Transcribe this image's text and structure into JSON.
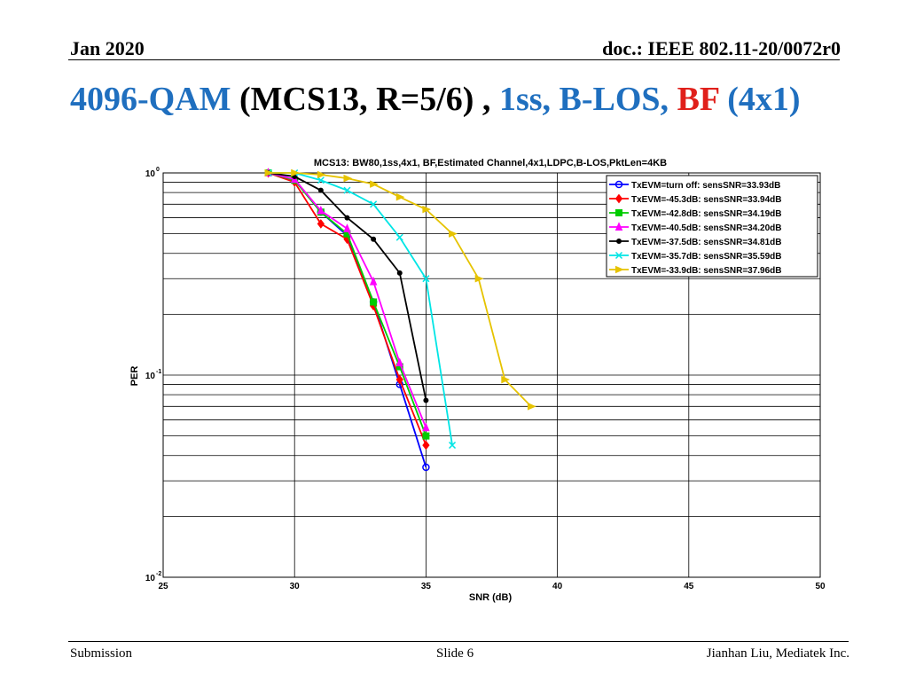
{
  "slide": {
    "date": "Jan 2020",
    "doc_id": "doc.: IEEE 802.11-20/0072r0",
    "title": {
      "part1": "4096-QAM",
      "part2": " (MCS13, R=5/6) , ",
      "part3": "1ss, B-LOS, ",
      "part4": "BF",
      "part5": " (4x1)"
    },
    "footer": {
      "left": "Submission",
      "center": "Slide 6",
      "right": "Jianhan Liu, Mediatek Inc."
    }
  },
  "chart_data": {
    "type": "line",
    "title": "MCS13: BW80,1ss,4x1, BF,Estimated Channel,4x1,LDPC,B-LOS,PktLen=4KB",
    "xlabel": "SNR (dB)",
    "ylabel": "PER",
    "xlim": [
      25,
      50
    ],
    "ylim": [
      0.01,
      1
    ],
    "yscale": "log",
    "x_ticks": [
      25,
      30,
      35,
      40,
      45,
      50
    ],
    "y_ticks": [
      {
        "base": "10",
        "exp": "0",
        "value": 1
      },
      {
        "base": "10",
        "exp": "-1",
        "value": 0.1
      },
      {
        "base": "10",
        "exp": "-2",
        "value": 0.01
      }
    ],
    "grid": true,
    "legend_position": "top-right",
    "series": [
      {
        "name": "TxEVM=turn off:   sensSNR=33.93dB",
        "color": "#0000ff",
        "marker": "circle",
        "x": [
          29,
          30,
          31,
          32,
          33,
          34,
          35
        ],
        "y": [
          1.0,
          0.93,
          0.64,
          0.49,
          0.23,
          0.09,
          0.035
        ]
      },
      {
        "name": "TxEVM=-45.3dB:   sensSNR=33.94dB",
        "color": "#ff0000",
        "marker": "diamond",
        "x": [
          29,
          30,
          31,
          32,
          33,
          34,
          35
        ],
        "y": [
          1.0,
          0.9,
          0.56,
          0.47,
          0.22,
          0.095,
          0.045
        ]
      },
      {
        "name": "TxEVM=-42.8dB:   sensSNR=34.19dB",
        "color": "#00cc00",
        "marker": "square",
        "x": [
          29,
          30,
          31,
          32,
          33,
          34,
          35
        ],
        "y": [
          1.0,
          0.92,
          0.64,
          0.5,
          0.23,
          0.11,
          0.05
        ]
      },
      {
        "name": "TxEVM=-40.5dB:   sensSNR=34.20dB",
        "color": "#ff00ff",
        "marker": "triangle-up",
        "x": [
          29,
          30,
          31,
          32,
          33,
          34,
          35
        ],
        "y": [
          1.0,
          0.93,
          0.65,
          0.53,
          0.29,
          0.115,
          0.055
        ]
      },
      {
        "name": "TxEVM=-37.5dB:   sensSNR=34.81dB",
        "color": "#000000",
        "marker": "dot",
        "x": [
          29,
          30,
          31,
          32,
          33,
          34,
          35
        ],
        "y": [
          1.0,
          0.96,
          0.82,
          0.6,
          0.47,
          0.32,
          0.075
        ]
      },
      {
        "name": "TxEVM=-35.7dB:   sensSNR=35.59dB",
        "color": "#00e5e5",
        "marker": "x",
        "x": [
          29,
          30,
          31,
          32,
          33,
          34,
          35,
          36
        ],
        "y": [
          1.0,
          1.0,
          0.92,
          0.82,
          0.7,
          0.48,
          0.3,
          0.045
        ]
      },
      {
        "name": "TxEVM=-33.9dB:   sensSNR=37.96dB",
        "color": "#e6c300",
        "marker": "triangle-right",
        "x": [
          29,
          30,
          31,
          32,
          33,
          34,
          35,
          36,
          37,
          38,
          39
        ],
        "y": [
          1.0,
          1.0,
          0.98,
          0.94,
          0.88,
          0.76,
          0.66,
          0.5,
          0.3,
          0.095,
          0.07
        ]
      }
    ]
  }
}
